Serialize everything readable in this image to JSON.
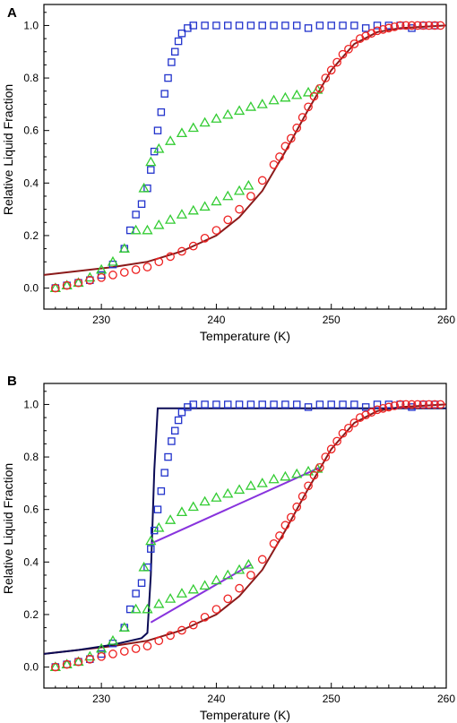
{
  "chart_data": [
    {
      "type": "scatter",
      "panel_label": "A",
      "xlabel": "Temperature (K)",
      "ylabel": "Relative Liquid Fraction",
      "xlim": [
        225,
        260
      ],
      "ylim": [
        -0.08,
        1.08
      ],
      "xticks": [
        230,
        240,
        250,
        260
      ],
      "yticks": [
        0.0,
        0.2,
        0.4,
        0.6,
        0.8,
        1.0
      ],
      "series": [
        {
          "marker": "square",
          "color": "#2233cc",
          "x": [
            226,
            227,
            228,
            229,
            230,
            231,
            232,
            232.5,
            233,
            233.5,
            234,
            234.3,
            234.6,
            234.9,
            235.2,
            235.5,
            235.8,
            236.1,
            236.4,
            236.7,
            237,
            237.5,
            238,
            239,
            240,
            241,
            242,
            243,
            244,
            245,
            246,
            247,
            248,
            249,
            250,
            251,
            252,
            253,
            254,
            255,
            256,
            257,
            258,
            259
          ],
          "y": [
            0.0,
            0.01,
            0.02,
            0.03,
            0.05,
            0.09,
            0.15,
            0.22,
            0.28,
            0.32,
            0.38,
            0.45,
            0.52,
            0.6,
            0.67,
            0.74,
            0.8,
            0.86,
            0.9,
            0.94,
            0.97,
            0.99,
            1.0,
            1.0,
            1.0,
            1.0,
            1.0,
            1.0,
            1.0,
            1.0,
            1.0,
            1.0,
            0.99,
            1.0,
            1.0,
            1.0,
            1.0,
            0.99,
            1.0,
            1.0,
            1.0,
            0.99,
            1.0,
            1.0
          ]
        },
        {
          "marker": "triangle",
          "color": "#33cc33",
          "x": [
            226,
            227,
            228,
            229,
            230,
            231,
            232,
            233,
            233.7,
            234.3,
            235,
            236,
            237,
            238,
            239,
            240,
            241,
            242,
            243,
            244,
            245,
            246,
            247,
            248,
            248.8,
            234,
            235,
            236,
            237,
            238,
            239,
            240,
            241,
            242,
            242.8
          ],
          "y": [
            0.0,
            0.01,
            0.02,
            0.04,
            0.07,
            0.1,
            0.15,
            0.22,
            0.38,
            0.48,
            0.53,
            0.56,
            0.59,
            0.61,
            0.63,
            0.645,
            0.66,
            0.675,
            0.69,
            0.7,
            0.715,
            0.725,
            0.735,
            0.745,
            0.755,
            0.22,
            0.24,
            0.26,
            0.28,
            0.295,
            0.31,
            0.33,
            0.35,
            0.37,
            0.39
          ]
        },
        {
          "marker": "circle",
          "color": "#ee2222",
          "x": [
            226,
            227,
            228,
            229,
            230,
            231,
            232,
            233,
            234,
            235,
            236,
            237,
            238,
            239,
            240,
            241,
            242,
            243,
            244,
            245,
            245.5,
            246,
            246.5,
            247,
            247.5,
            248,
            248.5,
            249,
            249.5,
            250,
            250.5,
            251,
            251.5,
            252,
            252.5,
            253,
            253.5,
            254,
            254.5,
            255,
            255.5,
            256,
            256.5,
            257,
            257.5,
            258,
            258.5,
            259,
            259.5
          ],
          "y": [
            0.0,
            0.01,
            0.02,
            0.03,
            0.04,
            0.05,
            0.06,
            0.07,
            0.08,
            0.1,
            0.12,
            0.14,
            0.16,
            0.19,
            0.22,
            0.26,
            0.3,
            0.35,
            0.41,
            0.47,
            0.5,
            0.54,
            0.57,
            0.61,
            0.65,
            0.69,
            0.73,
            0.76,
            0.8,
            0.83,
            0.86,
            0.89,
            0.91,
            0.93,
            0.95,
            0.96,
            0.97,
            0.98,
            0.985,
            0.99,
            0.995,
            1.0,
            1.0,
            1.0,
            1.0,
            1.0,
            1.0,
            1.0,
            1.0
          ]
        }
      ],
      "lines": [
        {
          "color": "#8b1a1a",
          "x": [
            225,
            228,
            231,
            234,
            237,
            240,
            242,
            244,
            246,
            248,
            250,
            252,
            254,
            256,
            258,
            260
          ],
          "y": [
            0.05,
            0.065,
            0.08,
            0.1,
            0.14,
            0.2,
            0.27,
            0.37,
            0.52,
            0.68,
            0.83,
            0.93,
            0.975,
            0.99,
            0.995,
            1.0
          ]
        }
      ]
    },
    {
      "type": "scatter",
      "panel_label": "B",
      "xlabel": "Temperature (K)",
      "ylabel": "Relative Liquid Fraction",
      "xlim": [
        225,
        260
      ],
      "ylim": [
        -0.08,
        1.08
      ],
      "xticks": [
        230,
        240,
        250,
        260
      ],
      "yticks": [
        0.0,
        0.2,
        0.4,
        0.6,
        0.8,
        1.0
      ],
      "series": [
        {
          "marker": "square",
          "color": "#2233cc",
          "x": [
            226,
            227,
            228,
            229,
            230,
            231,
            232,
            232.5,
            233,
            233.5,
            234,
            234.3,
            234.6,
            234.9,
            235.2,
            235.5,
            235.8,
            236.1,
            236.4,
            236.7,
            237,
            237.5,
            238,
            239,
            240,
            241,
            242,
            243,
            244,
            245,
            246,
            247,
            248,
            249,
            250,
            251,
            252,
            253,
            254,
            255,
            256,
            257,
            258,
            259
          ],
          "y": [
            0.0,
            0.01,
            0.02,
            0.03,
            0.05,
            0.09,
            0.15,
            0.22,
            0.28,
            0.32,
            0.38,
            0.45,
            0.52,
            0.6,
            0.67,
            0.74,
            0.8,
            0.86,
            0.9,
            0.94,
            0.97,
            0.99,
            1.0,
            1.0,
            1.0,
            1.0,
            1.0,
            1.0,
            1.0,
            1.0,
            1.0,
            1.0,
            0.99,
            1.0,
            1.0,
            1.0,
            1.0,
            0.99,
            1.0,
            1.0,
            1.0,
            0.99,
            1.0,
            1.0
          ]
        },
        {
          "marker": "triangle",
          "color": "#33cc33",
          "x": [
            226,
            227,
            228,
            229,
            230,
            231,
            232,
            233,
            233.7,
            234.3,
            235,
            236,
            237,
            238,
            239,
            240,
            241,
            242,
            243,
            244,
            245,
            246,
            247,
            248,
            248.8,
            234,
            235,
            236,
            237,
            238,
            239,
            240,
            241,
            242,
            242.8
          ],
          "y": [
            0.0,
            0.01,
            0.02,
            0.04,
            0.07,
            0.1,
            0.15,
            0.22,
            0.38,
            0.48,
            0.53,
            0.56,
            0.59,
            0.61,
            0.63,
            0.645,
            0.66,
            0.675,
            0.69,
            0.7,
            0.715,
            0.725,
            0.735,
            0.745,
            0.755,
            0.22,
            0.24,
            0.26,
            0.28,
            0.295,
            0.31,
            0.33,
            0.35,
            0.37,
            0.39
          ]
        },
        {
          "marker": "circle",
          "color": "#ee2222",
          "x": [
            226,
            227,
            228,
            229,
            230,
            231,
            232,
            233,
            234,
            235,
            236,
            237,
            238,
            239,
            240,
            241,
            242,
            243,
            244,
            245,
            245.5,
            246,
            246.5,
            247,
            247.5,
            248,
            248.5,
            249,
            249.5,
            250,
            250.5,
            251,
            251.5,
            252,
            252.5,
            253,
            253.5,
            254,
            254.5,
            255,
            255.5,
            256,
            256.5,
            257,
            257.5,
            258,
            258.5,
            259,
            259.5
          ],
          "y": [
            0.0,
            0.01,
            0.02,
            0.03,
            0.04,
            0.05,
            0.06,
            0.07,
            0.08,
            0.1,
            0.12,
            0.14,
            0.16,
            0.19,
            0.22,
            0.26,
            0.3,
            0.35,
            0.41,
            0.47,
            0.5,
            0.54,
            0.57,
            0.61,
            0.65,
            0.69,
            0.73,
            0.76,
            0.8,
            0.83,
            0.86,
            0.89,
            0.91,
            0.93,
            0.95,
            0.96,
            0.97,
            0.98,
            0.985,
            0.99,
            0.995,
            1.0,
            1.0,
            1.0,
            1.0,
            1.0,
            1.0,
            1.0,
            1.0
          ]
        }
      ],
      "lines": [
        {
          "color": "#8b1a1a",
          "x": [
            225,
            228,
            231,
            234,
            237,
            240,
            242,
            244,
            246,
            248,
            250,
            252,
            254,
            256,
            258,
            260
          ],
          "y": [
            0.05,
            0.065,
            0.08,
            0.1,
            0.14,
            0.2,
            0.27,
            0.37,
            0.52,
            0.68,
            0.83,
            0.93,
            0.975,
            0.99,
            0.995,
            1.0
          ]
        },
        {
          "color": "#0b0b55",
          "x": [
            225,
            228,
            231,
            233.5,
            234,
            234.3,
            234.6,
            234.9,
            260
          ],
          "y": [
            0.05,
            0.065,
            0.085,
            0.11,
            0.13,
            0.35,
            0.75,
            0.985,
            0.985
          ]
        },
        {
          "color": "#8833dd",
          "x": [
            234.3,
            249
          ],
          "y": [
            0.47,
            0.76
          ]
        },
        {
          "color": "#8833dd",
          "x": [
            234.3,
            243
          ],
          "y": [
            0.17,
            0.39
          ]
        }
      ]
    }
  ]
}
